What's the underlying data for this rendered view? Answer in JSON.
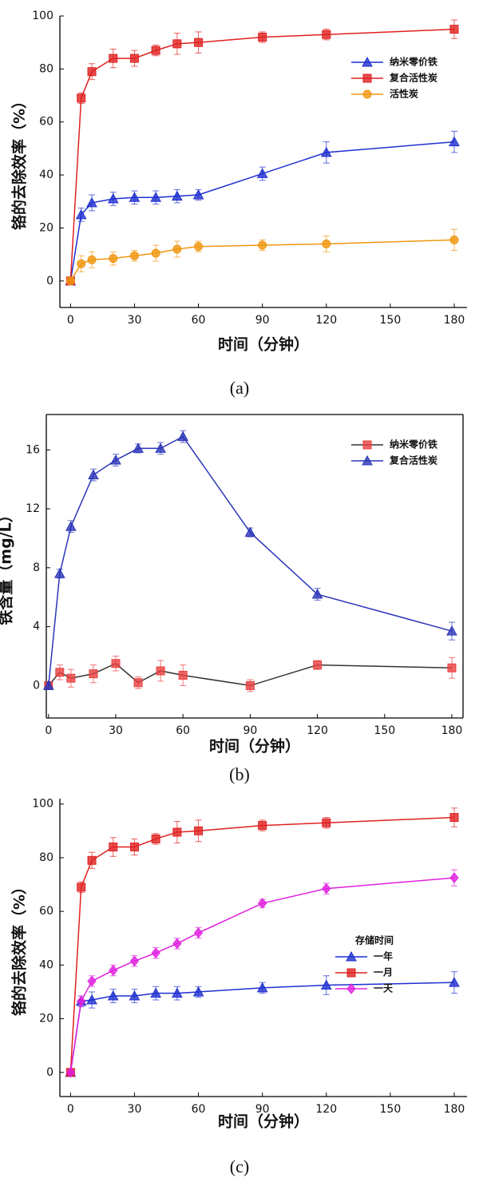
{
  "chart_data": [
    {
      "type": "line",
      "caption": "(a)",
      "x_label": "时间（分钟）",
      "y_label": "铬的去除效率（%）",
      "x": [
        0,
        5,
        10,
        20,
        30,
        40,
        50,
        60,
        90,
        120,
        180
      ],
      "xlim": [
        -5,
        186
      ],
      "xticks": [
        0,
        30,
        60,
        90,
        120,
        150,
        180
      ],
      "ylim": [
        -10,
        100
      ],
      "yticks": [
        0,
        20,
        40,
        60,
        80,
        100
      ],
      "legend": "upper right",
      "series": [
        {
          "name": "纳米零价铁",
          "color": "#1f2fd0",
          "marker": "triangle",
          "values": [
            0,
            25,
            29.5,
            31,
            31.5,
            31.5,
            32,
            32.5,
            40.5,
            48.5,
            52.5
          ],
          "errors": [
            0,
            2.5,
            3,
            2.5,
            2.5,
            2.5,
            2.5,
            2,
            2.5,
            4,
            4
          ]
        },
        {
          "name": "复合活性炭",
          "color": "#e02020",
          "marker": "square",
          "values": [
            0,
            69,
            79,
            84,
            84,
            87,
            89.5,
            90,
            92,
            93,
            95
          ],
          "errors": [
            0,
            2,
            3,
            3.5,
            3,
            2,
            4,
            4,
            2,
            2,
            3.5
          ]
        },
        {
          "name": "活性炭",
          "color": "#f0960f",
          "marker": "circle",
          "values": [
            0,
            6.5,
            8,
            8.5,
            9.5,
            10.5,
            12,
            13,
            13.5,
            14,
            15.5
          ],
          "errors": [
            0,
            3,
            3,
            2.5,
            2,
            3,
            3,
            2,
            2,
            3,
            4
          ]
        }
      ]
    },
    {
      "type": "line",
      "caption": "(b)",
      "x_label": "时间（分钟）",
      "y_label": "铁含量（mg/L）",
      "x": [
        0,
        5,
        10,
        20,
        30,
        40,
        50,
        60,
        90,
        120,
        180
      ],
      "xlim": [
        -1,
        185
      ],
      "xticks": [
        0,
        30,
        60,
        90,
        120,
        150,
        180
      ],
      "ylim": [
        -2.2,
        18.4
      ],
      "yticks": [
        0,
        4,
        8,
        12,
        16
      ],
      "legend": "upper right",
      "series": [
        {
          "name": "纳米零价铁",
          "color": "#333333",
          "marker_color": "#e84040",
          "marker": "square",
          "values": [
            0,
            0.9,
            0.5,
            0.8,
            1.5,
            0.2,
            1.0,
            0.7,
            0,
            1.4,
            1.2
          ],
          "errors": [
            0,
            0.5,
            0.6,
            0.6,
            0.5,
            0.4,
            0.7,
            0.7,
            0.4,
            0.3,
            0.7
          ]
        },
        {
          "name": "复合活性炭",
          "color": "#2a35b8",
          "marker": "triangle",
          "values": [
            0,
            7.6,
            10.8,
            14.3,
            15.3,
            16.1,
            16.1,
            16.9,
            10.4,
            6.2,
            3.7
          ],
          "errors": [
            0.2,
            0.3,
            0.4,
            0.4,
            0.4,
            0.3,
            0.4,
            0.4,
            0.3,
            0.4,
            0.6
          ]
        }
      ]
    },
    {
      "type": "line",
      "caption": "(c)",
      "x_label": "时间（分钟）",
      "y_label": "铬的去除效率（%）",
      "x": [
        0,
        5,
        10,
        20,
        30,
        40,
        50,
        60,
        90,
        120,
        180
      ],
      "xlim": [
        -5,
        186
      ],
      "xticks": [
        0,
        30,
        60,
        90,
        120,
        150,
        180
      ],
      "ylim": [
        -9,
        102
      ],
      "yticks": [
        0,
        20,
        40,
        60,
        80,
        100
      ],
      "legend": "center right",
      "legend_title": "存储时间",
      "series": [
        {
          "name": "一年",
          "color": "#1f2fd0",
          "marker": "triangle",
          "values": [
            0,
            26.5,
            27,
            28.5,
            28.5,
            29.5,
            29.5,
            30,
            31.5,
            32.5,
            33.5
          ],
          "errors": [
            0,
            2,
            3,
            2.5,
            2.5,
            2.5,
            2.5,
            2,
            2,
            3.5,
            4
          ]
        },
        {
          "name": "一月",
          "color": "#e02020",
          "marker": "square",
          "values": [
            0,
            69,
            79,
            84,
            84,
            87,
            89.5,
            90,
            92,
            93,
            95
          ],
          "errors": [
            0,
            2,
            3,
            3.5,
            3,
            2,
            4,
            4,
            2,
            2,
            3.5
          ]
        },
        {
          "name": "一天",
          "color": "#e020e0",
          "marker": "diamond",
          "values": [
            0,
            26.5,
            34,
            38,
            41.5,
            44.5,
            48,
            52,
            63,
            68.5,
            72.5
          ],
          "errors": [
            0,
            2,
            2,
            2,
            2,
            2,
            2,
            2,
            1.5,
            2,
            3
          ]
        }
      ]
    }
  ]
}
